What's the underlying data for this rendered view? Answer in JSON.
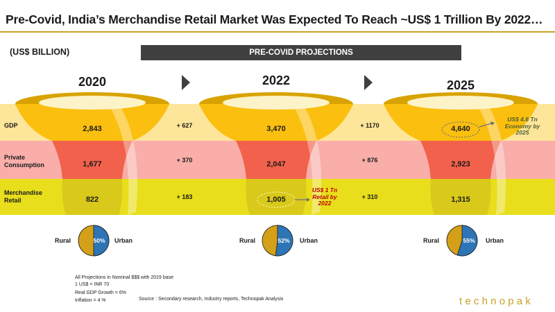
{
  "title": "Pre-Covid, India’s Merchandise Retail Market Was Expected To Reach ~US$ 1 Trillion By 2022…",
  "unit_label": "(US$ BILLION)",
  "banner": "PRE-COVID PROJECTIONS",
  "colors": {
    "accent": "#c9a227",
    "band_gdp": "#fde59a",
    "band_private": "#f9aeaa",
    "band_retail": "#e8de1c",
    "funnel_gdp": "#fbbf0f",
    "funnel_private": "#f2614b",
    "funnel_retail": "#d9c91a",
    "pie_rural": "#d4a017",
    "pie_urban": "#2e75b6"
  },
  "bands": {
    "gdp": "GDP",
    "private": "Private\nConsumption",
    "retail": "Merchandise\nRetail"
  },
  "years": [
    {
      "year": "2020",
      "gdp": "2,843",
      "private": "1,677",
      "retail": "822",
      "urban_pct": 50,
      "urban_label": "50%"
    },
    {
      "year": "2022",
      "gdp": "3,470",
      "private": "2,047",
      "retail": "1,005",
      "urban_pct": 52,
      "urban_label": "52%"
    },
    {
      "year": "2025",
      "gdp": "4,640",
      "private": "2,923",
      "retail": "1,315",
      "urban_pct": 55,
      "urban_label": "55%"
    }
  ],
  "deltas": [
    {
      "gdp": "+ 627",
      "private": "+ 370",
      "retail": "+ 183"
    },
    {
      "gdp": "+ 1170",
      "private": "+ 876",
      "retail": "+ 310"
    }
  ],
  "pie_labels": {
    "rural": "Rural",
    "urban": "Urban"
  },
  "callouts": {
    "retail_2022": "US$ 1 Tn\nRetail by\n2022",
    "gdp_2025": "US$ 4.6 Tn\nEconomy by\n2025"
  },
  "footnotes": [
    "All Projections in Nominal $$$ with 2019 base",
    "1 US$ = INR 70",
    "Real GDP Growth = 6%",
    "Inflation = 4 %"
  ],
  "source": "Source : Secondary research, Industry reports, Technopak Analysis",
  "brand": "technopak"
}
